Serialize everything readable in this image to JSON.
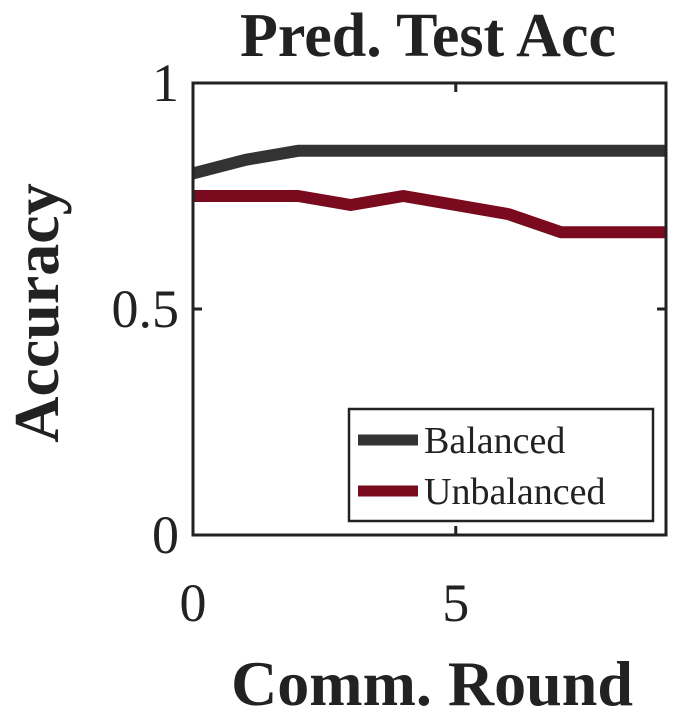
{
  "chart_data": {
    "type": "line",
    "title": "Pred. Test Acc",
    "xlabel": "Comm. Round",
    "ylabel": "Accuracy",
    "xlim": [
      0,
      9
    ],
    "ylim": [
      0,
      1
    ],
    "x_ticks": [
      0,
      5
    ],
    "y_ticks": [
      0,
      0.5,
      1
    ],
    "y_tick_labels": [
      "0",
      "0.5",
      "1"
    ],
    "x_tick_labels": [
      "0",
      "5"
    ],
    "grid": false,
    "legend_position": "bottom-right",
    "x": [
      0,
      1,
      2,
      3,
      4,
      5,
      6,
      7,
      8,
      9
    ],
    "series": [
      {
        "name": "Balanced",
        "color": "#333333",
        "values": [
          0.8,
          0.83,
          0.85,
          0.85,
          0.85,
          0.85,
          0.85,
          0.85,
          0.85,
          0.85
        ]
      },
      {
        "name": "Unbalanced",
        "color": "#7a0a1e",
        "values": [
          0.75,
          0.75,
          0.75,
          0.73,
          0.75,
          0.73,
          0.71,
          0.67,
          0.67,
          0.67
        ]
      }
    ]
  }
}
